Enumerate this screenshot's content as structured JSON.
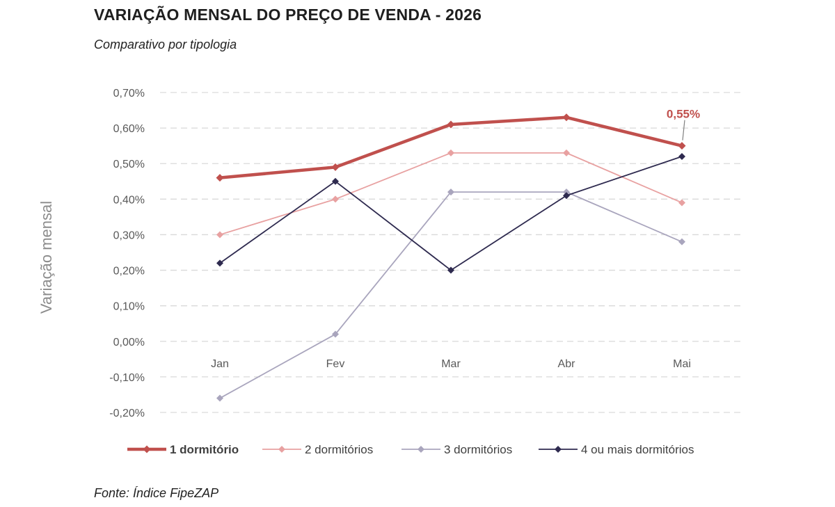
{
  "header": {
    "title": "VARIAÇÃO MENSAL DO PREÇO DE VENDA - 2026",
    "subtitle": "Comparativo por tipologia"
  },
  "footer": {
    "source": "Fonte: Índice FipeZAP"
  },
  "chart_data": {
    "type": "line",
    "title": "VARIAÇÃO MENSAL DO PREÇO DE VENDA - 2026",
    "subtitle": "Comparativo por tipologia",
    "xlabel": "",
    "ylabel": "Variação mensal",
    "ylim": [
      -0.2,
      0.7
    ],
    "yticks": [
      0.7,
      0.6,
      0.5,
      0.4,
      0.3,
      0.2,
      0.1,
      0.0,
      -0.1,
      -0.2
    ],
    "ytick_labels": [
      "0,70%",
      "0,60%",
      "0,50%",
      "0,40%",
      "0,30%",
      "0,20%",
      "0,10%",
      "0,00%",
      "-0,10%",
      "-0,20%"
    ],
    "categories": [
      "Jan",
      "Fev",
      "Mar",
      "Abr",
      "Mai"
    ],
    "grid": "horizontal dashed",
    "legend": "bottom",
    "series": [
      {
        "name": "1 dormitório",
        "values": [
          0.46,
          0.49,
          0.61,
          0.63,
          0.55
        ],
        "color": "#c0504d",
        "emphasis": true
      },
      {
        "name": "2 dormitórios",
        "values": [
          0.3,
          0.4,
          0.53,
          0.53,
          0.39
        ],
        "color": "#e8a1a1"
      },
      {
        "name": "3 dormitórios",
        "values": [
          -0.16,
          0.02,
          0.42,
          0.42,
          0.28
        ],
        "color": "#a9a5bd"
      },
      {
        "name": "4 ou mais dormitórios",
        "values": [
          0.22,
          0.45,
          0.2,
          0.41,
          0.52
        ],
        "color": "#2e2a4f"
      }
    ],
    "annotations": [
      {
        "text": "0,55%",
        "series": "1 dormitório",
        "category": "Mai",
        "color": "#c0504d"
      }
    ]
  }
}
